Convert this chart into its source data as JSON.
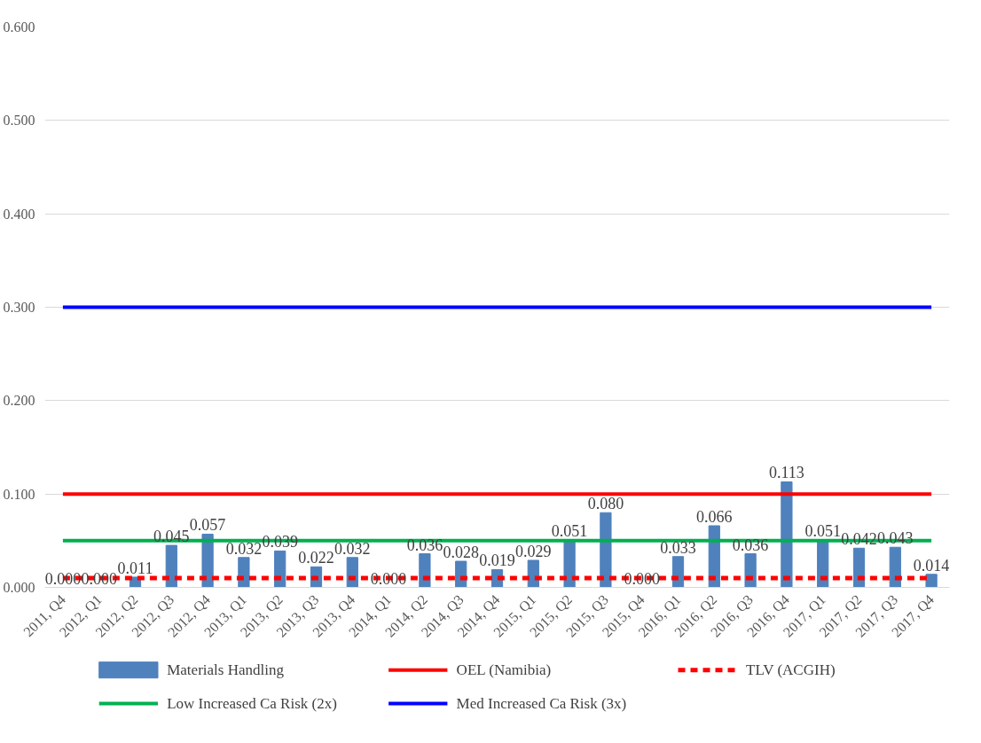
{
  "chart_data": {
    "type": "bar",
    "categories": [
      "2011, Q4",
      "2012, Q1",
      "2012, Q2",
      "2012, Q3",
      "2012, Q4",
      "2013, Q1",
      "2013, Q2",
      "2013, Q3",
      "2013, Q4",
      "2014, Q1",
      "2014, Q2",
      "2014, Q3",
      "2014, Q4",
      "2015, Q1",
      "2015, Q2",
      "2015, Q3",
      "2015, Q4",
      "2016, Q1",
      "2016, Q2",
      "2016, Q3",
      "2016, Q4",
      "2017, Q1",
      "2017, Q2",
      "2017, Q3",
      "2017, Q4"
    ],
    "series": [
      {
        "name": "Materials Handling",
        "color": "#4f81bd",
        "values": [
          0.0,
          0.0,
          0.011,
          0.045,
          0.057,
          0.032,
          0.039,
          0.022,
          0.032,
          0.0,
          0.036,
          0.028,
          0.019,
          0.029,
          0.051,
          0.08,
          0.0,
          0.033,
          0.066,
          0.036,
          0.113,
          0.051,
          0.042,
          0.043,
          0.014
        ],
        "value_labels": [
          "0.000",
          "0.000",
          "0.011",
          "0.045",
          "0.057",
          "0.032",
          "0.039",
          "0.022",
          "0.032",
          "0.000",
          "0.036",
          "0.028",
          "0.019",
          "0.029",
          "0.051",
          "0.080",
          "0.000",
          "0.033",
          "0.066",
          "0.036",
          "0.113",
          "0.051",
          "0.042",
          "0.043",
          "0.014"
        ]
      },
      {
        "name": "OEL (Namibia)",
        "type": "line",
        "color": "#ff0000",
        "line_style": "solid",
        "values": [
          0.1,
          0.1,
          0.1,
          0.1,
          0.1,
          0.1,
          0.1,
          0.1,
          0.1,
          0.1,
          0.1,
          0.1,
          0.1,
          0.1,
          0.1,
          0.1,
          0.1,
          0.1,
          0.1,
          0.1,
          0.1,
          0.1,
          0.1,
          0.1,
          0.1
        ]
      },
      {
        "name": "TLV (ACGIH)",
        "type": "line",
        "color": "#ff0000",
        "line_style": "dashed",
        "values": [
          0.01,
          0.01,
          0.01,
          0.01,
          0.01,
          0.01,
          0.01,
          0.01,
          0.01,
          0.01,
          0.01,
          0.01,
          0.01,
          0.01,
          0.01,
          0.01,
          0.01,
          0.01,
          0.01,
          0.01,
          0.01,
          0.01,
          0.01,
          0.01,
          0.01
        ]
      },
      {
        "name": "Low Increased Ca Risk (2x)",
        "type": "line",
        "color": "#00b050",
        "line_style": "solid",
        "values": [
          0.05,
          0.05,
          0.05,
          0.05,
          0.05,
          0.05,
          0.05,
          0.05,
          0.05,
          0.05,
          0.05,
          0.05,
          0.05,
          0.05,
          0.05,
          0.05,
          0.05,
          0.05,
          0.05,
          0.05,
          0.05,
          0.05,
          0.05,
          0.05,
          0.05
        ]
      },
      {
        "name": "Med Increased Ca Risk (3x)",
        "type": "line",
        "color": "#0000ff",
        "line_style": "solid",
        "values": [
          0.3,
          0.3,
          0.3,
          0.3,
          0.3,
          0.3,
          0.3,
          0.3,
          0.3,
          0.3,
          0.3,
          0.3,
          0.3,
          0.3,
          0.3,
          0.3,
          0.3,
          0.3,
          0.3,
          0.3,
          0.3,
          0.3,
          0.3,
          0.3,
          0.3
        ]
      }
    ],
    "ylim": [
      0,
      0.6
    ],
    "yticks": [
      {
        "value": 0,
        "label": "0.000"
      },
      {
        "value": 0.1,
        "label": "0.100"
      },
      {
        "value": 0.2,
        "label": "0.200"
      },
      {
        "value": 0.3,
        "label": "0.300"
      },
      {
        "value": 0.4,
        "label": "0.400"
      },
      {
        "value": 0.5,
        "label": "0.500"
      },
      {
        "value": 0.6,
        "label": "0.600"
      }
    ],
    "grid": "y",
    "legend": "bottom",
    "marker": "none"
  }
}
